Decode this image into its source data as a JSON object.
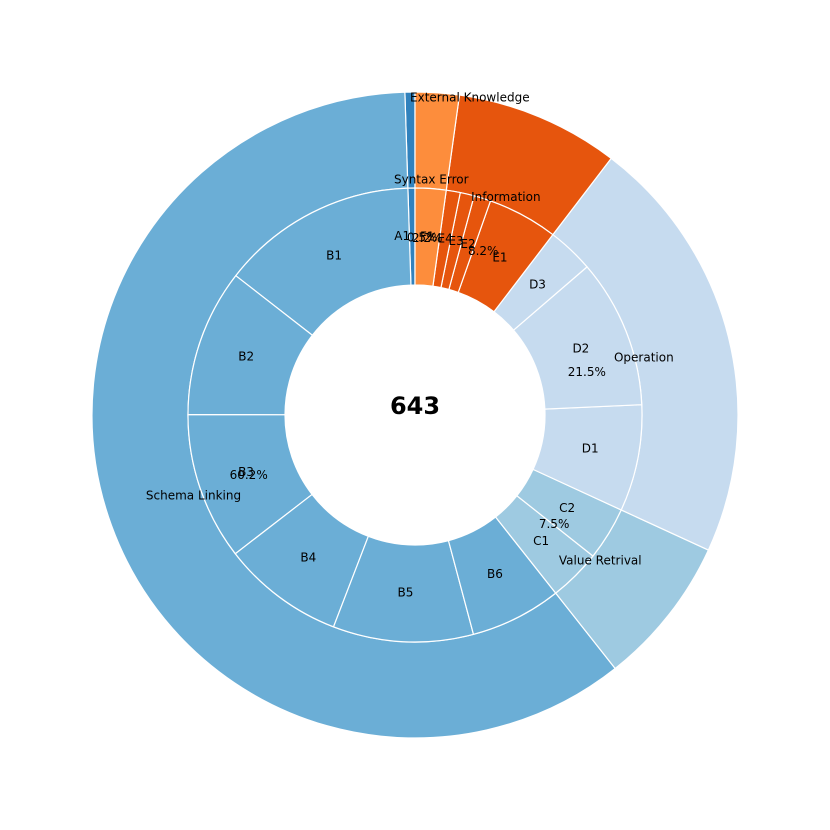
{
  "chart_data": {
    "type": "pie",
    "subtype": "nested-donut",
    "center_total": "643",
    "categories": [
      {
        "name": "External Knowledge",
        "percent_label": "0.5%",
        "value": 0.5,
        "color": "#3182bd",
        "subcategories": [
          {
            "name": "A1",
            "value": 0.5
          }
        ]
      },
      {
        "name": "Schema Linking",
        "percent_label": "60.2%",
        "value": 60.2,
        "color": "#6baed6",
        "subcategories": [
          {
            "name": "B1",
            "value": 14.0
          },
          {
            "name": "B2",
            "value": 10.5
          },
          {
            "name": "B3",
            "value": 10.5
          },
          {
            "name": "B4",
            "value": 8.7
          },
          {
            "name": "B5",
            "value": 10.0
          },
          {
            "name": "B6",
            "value": 6.5
          }
        ]
      },
      {
        "name": "Value Retrival",
        "percent_label": "7.5%",
        "value": 7.5,
        "color": "#9ecae1",
        "subcategories": [
          {
            "name": "C1",
            "value": 3.7
          },
          {
            "name": "C2",
            "value": 3.8
          }
        ]
      },
      {
        "name": "Operation",
        "percent_label": "21.5%",
        "value": 21.5,
        "color": "#c6dbef",
        "subcategories": [
          {
            "name": "D1",
            "value": 7.6
          },
          {
            "name": "D2",
            "value": 10.6
          },
          {
            "name": "D3",
            "value": 3.3
          }
        ]
      },
      {
        "name": "Information",
        "percent_label": "8.2%",
        "value": 8.2,
        "color": "#e6550d",
        "subcategories": [
          {
            "name": "E1",
            "value": 5.0
          },
          {
            "name": "E2",
            "value": 1.2
          },
          {
            "name": "E3",
            "value": 1.0
          },
          {
            "name": "E4",
            "value": 1.0
          }
        ]
      },
      {
        "name": "Syntax Error",
        "percent_label": "2.2%",
        "value": 2.2,
        "color": "#fd8d3c",
        "subcategories": [
          {
            "name": "F1",
            "value": 2.2
          }
        ]
      }
    ],
    "start_angle_deg": 90,
    "direction": "counterclockwise",
    "edge_color": "#ffffff"
  }
}
